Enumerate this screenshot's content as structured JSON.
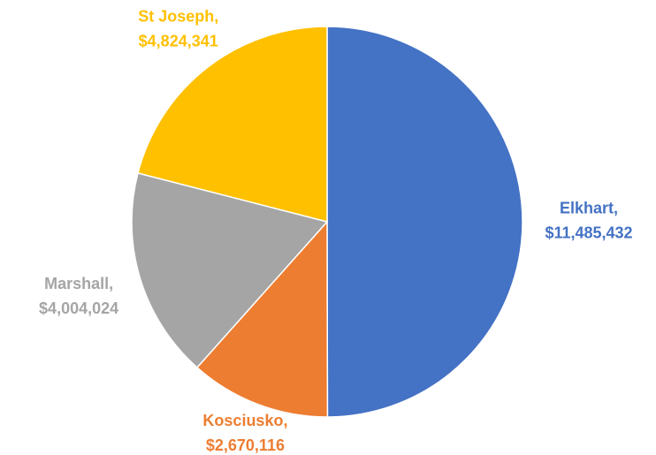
{
  "chart_data": {
    "type": "pie",
    "categories": [
      "Elkhart,",
      "Kosciusko,",
      "Marshall,",
      "St Joseph,"
    ],
    "values": [
      11485432,
      2670116,
      4004024,
      4824341
    ],
    "value_labels": [
      "$11,485,432",
      "$2,670,116",
      "$4,004,024",
      "$4,824,341"
    ],
    "colors": [
      "#4472c4",
      "#ed7d31",
      "#a5a5a5",
      "#ffc000"
    ]
  }
}
